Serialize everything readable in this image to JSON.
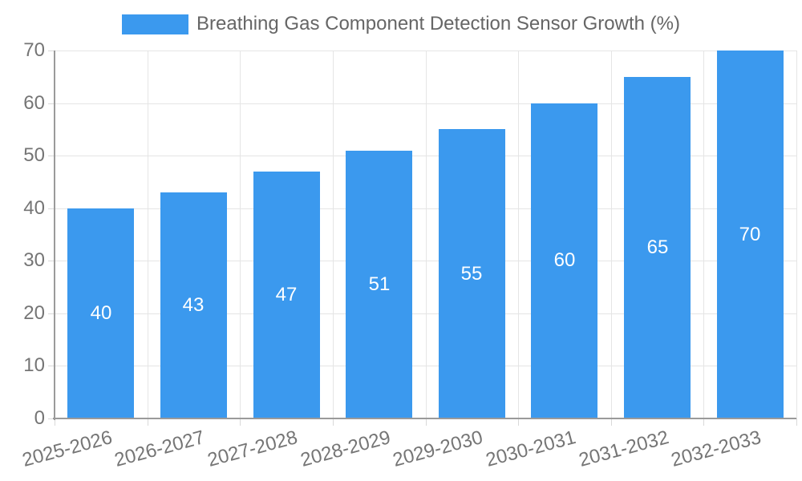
{
  "chart_data": {
    "type": "bar",
    "title": "Breathing Gas Component Detection Sensor Growth (%)",
    "categories": [
      "2025-2026",
      "2026-2027",
      "2027-2028",
      "2028-2029",
      "2029-2030",
      "2030-2031",
      "2031-2032",
      "2032-2033"
    ],
    "values": [
      40,
      43,
      47,
      51,
      55,
      60,
      65,
      70
    ],
    "xlabel": "",
    "ylabel": "",
    "ylim": [
      0,
      70
    ],
    "ytick_step": 10,
    "yticks": [
      0,
      10,
      20,
      30,
      40,
      50,
      60,
      70
    ],
    "grid": true,
    "legend_position": "top-center",
    "value_labels": "inside-center",
    "colors": {
      "bar": "#3B99EE",
      "value_label": "#FFFFFF",
      "tick_text": "#757575",
      "legend_text": "#666666",
      "grid_line": "#E5E5E5",
      "axis_line": "#9A9A9A",
      "background": "#FFFFFF"
    }
  }
}
